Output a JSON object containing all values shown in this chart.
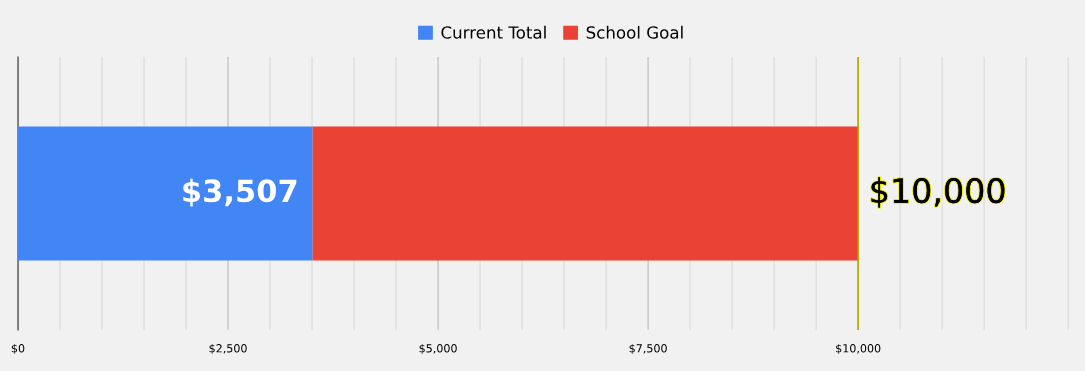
{
  "chart_data": {
    "type": "bar",
    "orientation": "horizontal",
    "stacked": true,
    "categories": [
      null
    ],
    "series": [
      {
        "name": "Current Total",
        "color": "#4285f4",
        "values": [
          3507
        ],
        "value_labels": [
          "$3,507"
        ]
      },
      {
        "name": "School Goal",
        "color": "#ea4335",
        "values": [
          6493
        ],
        "value_labels": [
          null
        ]
      }
    ],
    "totals": [
      "$10,000"
    ],
    "xlim": [
      0,
      12700
    ],
    "xticks": [
      {
        "value": 0,
        "label": "$0"
      },
      {
        "value": 500,
        "label": null
      },
      {
        "value": 1000,
        "label": null
      },
      {
        "value": 1500,
        "label": null
      },
      {
        "value": 2000,
        "label": null
      },
      {
        "value": 2500,
        "label": "$2,500"
      },
      {
        "value": 3000,
        "label": null
      },
      {
        "value": 3500,
        "label": null
      },
      {
        "value": 4000,
        "label": null
      },
      {
        "value": 4500,
        "label": null
      },
      {
        "value": 5000,
        "label": "$5,000"
      },
      {
        "value": 5500,
        "label": null
      },
      {
        "value": 6000,
        "label": null
      },
      {
        "value": 6500,
        "label": null
      },
      {
        "value": 7000,
        "label": null
      },
      {
        "value": 7500,
        "label": "$7,500"
      },
      {
        "value": 8000,
        "label": null
      },
      {
        "value": 8500,
        "label": null
      },
      {
        "value": 9000,
        "label": null
      },
      {
        "value": 9500,
        "label": null
      },
      {
        "value": 10000,
        "label": "$10,000"
      },
      {
        "value": 10500,
        "label": null
      },
      {
        "value": 11000,
        "label": null
      },
      {
        "value": 11500,
        "label": null
      },
      {
        "value": 12000,
        "label": null
      },
      {
        "value": 12500,
        "label": null
      }
    ],
    "ref_lines": [
      {
        "axis": "x",
        "value": 10000,
        "color": "#b5a800"
      }
    ],
    "grid": "x",
    "legend": "top"
  }
}
